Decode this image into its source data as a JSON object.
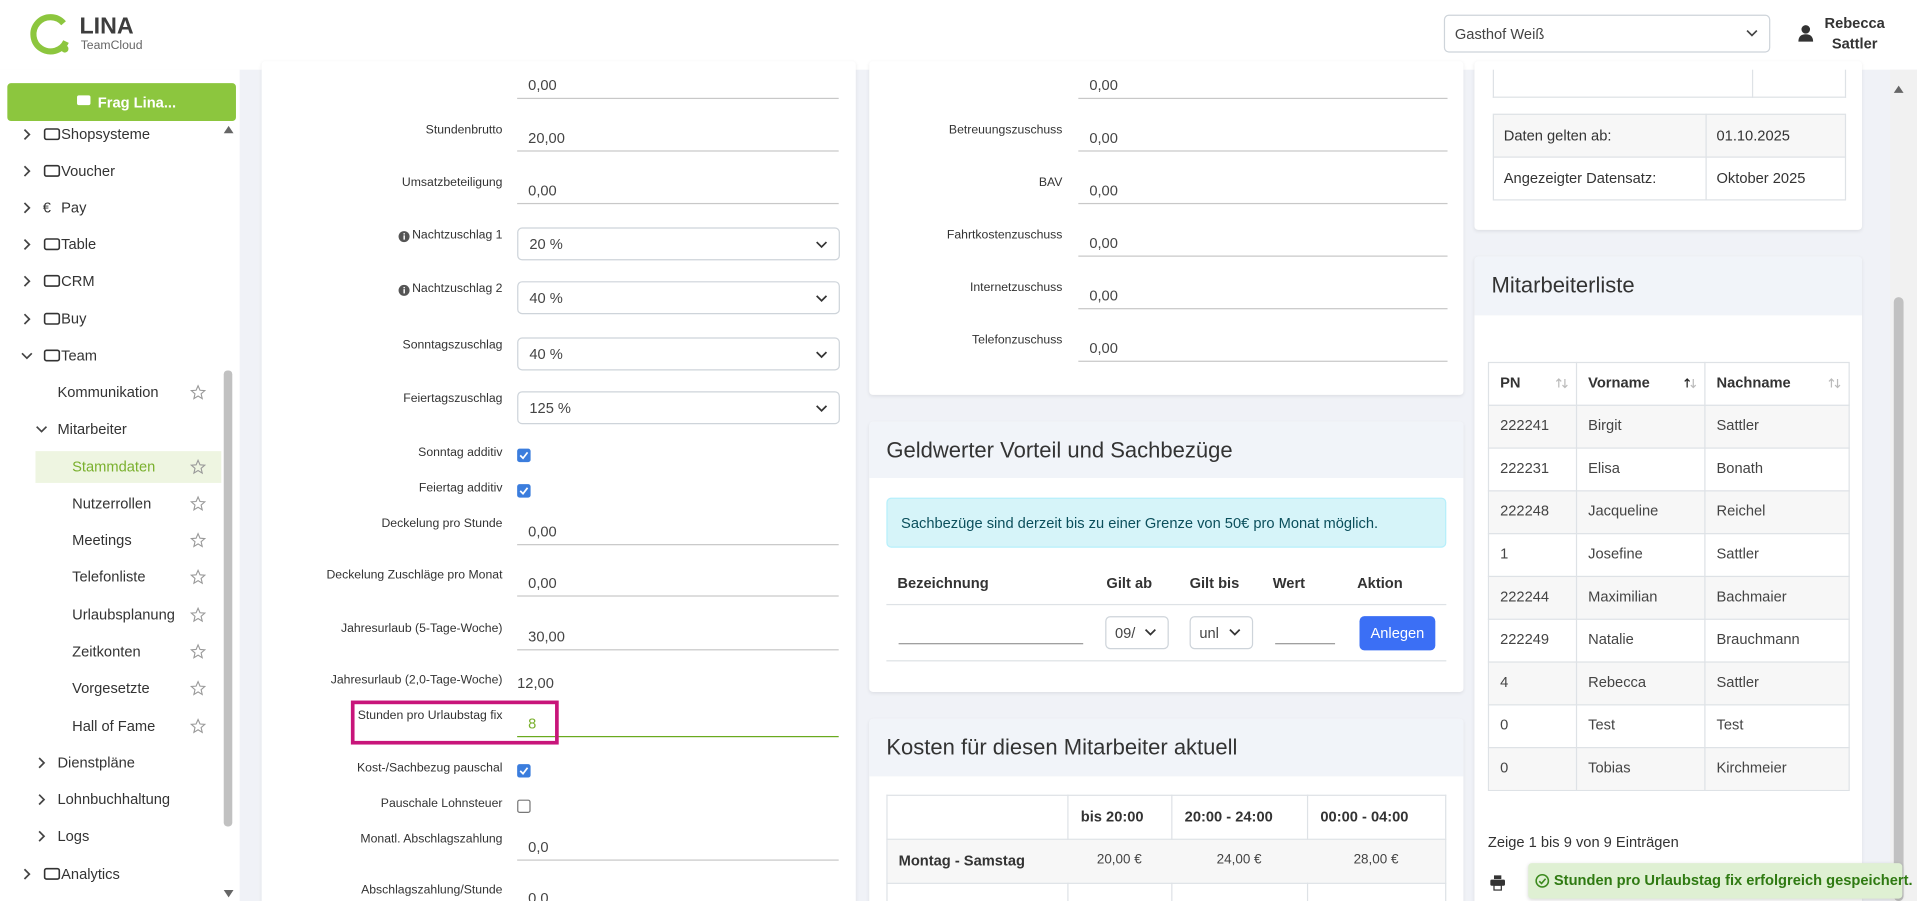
{
  "header": {
    "logo": "LINA",
    "tagline": "TeamCloud",
    "location": "Gasthof Weiß",
    "user": [
      "Rebecca",
      "Sattler"
    ]
  },
  "sidebar": {
    "ask": "Frag Lina...",
    "items": [
      {
        "label": "Shopsysteme",
        "level": 0,
        "toggle": "closed"
      },
      {
        "label": "Voucher",
        "level": 0,
        "toggle": "closed"
      },
      {
        "label": "Pay",
        "level": 0,
        "toggle": "closed",
        "icon": "€"
      },
      {
        "label": "Table",
        "level": 0,
        "toggle": "closed"
      },
      {
        "label": "CRM",
        "level": 0,
        "toggle": "closed"
      },
      {
        "label": "Buy",
        "level": 0,
        "toggle": "closed"
      },
      {
        "label": "Team",
        "level": 0,
        "toggle": "open"
      },
      {
        "label": "Kommunikation",
        "level": 1,
        "star": true
      },
      {
        "label": "Mitarbeiter",
        "level": 1,
        "toggle": "open"
      },
      {
        "label": "Stammdaten",
        "level": 2,
        "star": true,
        "active": true
      },
      {
        "label": "Nutzerrollen",
        "level": 2,
        "star": true
      },
      {
        "label": "Meetings",
        "level": 2,
        "star": true
      },
      {
        "label": "Telefonliste",
        "level": 2,
        "star": true
      },
      {
        "label": "Urlaubsplanung",
        "level": 2,
        "star": true
      },
      {
        "label": "Zeitkonten",
        "level": 2,
        "star": true
      },
      {
        "label": "Vorgesetzte",
        "level": 2,
        "star": true
      },
      {
        "label": "Hall of Fame",
        "level": 2,
        "star": true
      },
      {
        "label": "Dienstpläne",
        "level": 1,
        "toggle": "closed"
      },
      {
        "label": "Lohnbuchhaltung",
        "level": 1,
        "toggle": "closed"
      },
      {
        "label": "Logs",
        "level": 1,
        "toggle": "closed"
      },
      {
        "label": "Analytics",
        "level": 0,
        "toggle": "closed"
      }
    ]
  },
  "form_left": [
    {
      "value": "0,00",
      "kind": "input"
    },
    {
      "label": "Stundenbrutto",
      "value": "20,00",
      "kind": "input"
    },
    {
      "label": "Umsatzbeteiligung",
      "value": "0,00",
      "kind": "input"
    },
    {
      "label": "Nachtzuschlag 1",
      "value": "20 %",
      "kind": "select",
      "info": true
    },
    {
      "label": "Nachtzuschlag 2",
      "value": "40 %",
      "kind": "select",
      "info": true
    },
    {
      "label": "Sonntagszuschlag",
      "value": "40 %",
      "kind": "select"
    },
    {
      "label": "Feiertagszuschlag",
      "value": "125 %",
      "kind": "select"
    },
    {
      "label": "Sonntag additiv",
      "kind": "check",
      "checked": true
    },
    {
      "label": "Feiertag additiv",
      "kind": "check",
      "checked": true
    },
    {
      "label": "Deckelung pro Stunde",
      "value": "0,00",
      "kind": "input"
    },
    {
      "label": "Deckelung Zuschläge pro Monat",
      "value": "0,00",
      "kind": "input"
    },
    {
      "label": "Jahresurlaub (5-Tage-Woche)",
      "value": "30,00",
      "kind": "input"
    },
    {
      "label": "Jahresurlaub (2,0-Tage-Woche)",
      "value": "12,00",
      "kind": "plain"
    },
    {
      "label": "Stunden pro Urlaubstag fix",
      "value": "8",
      "kind": "input",
      "highlight": true
    },
    {
      "label": "Kost-/Sachbezug pauschal",
      "kind": "check",
      "checked": true
    },
    {
      "label": "Pauschale Lohnsteuer",
      "kind": "check",
      "checked": false
    },
    {
      "label": "Monatl. Abschlagszahlung",
      "value": "0,0",
      "kind": "input"
    },
    {
      "label": "Abschlagszahlung/Stunde",
      "value": "0,0",
      "kind": "input"
    }
  ],
  "form_middle": [
    {
      "value": "0,00"
    },
    {
      "label": "Betreuungszuschuss",
      "value": "0,00"
    },
    {
      "label": "BAV",
      "value": "0,00"
    },
    {
      "label": "Fahrtkostenzuschuss",
      "value": "0,00"
    },
    {
      "label": "Internetzuschuss",
      "value": "0,00"
    },
    {
      "label": "Telefonzuschuss",
      "value": "0,00"
    }
  ],
  "benefits": {
    "title": "Geldwerter Vorteil und Sachbezüge",
    "notice": "Sachbezüge sind derzeit bis zu einer Grenze von 50€ pro Monat möglich.",
    "columns": [
      "Bezeichnung",
      "Gilt ab",
      "Gilt bis",
      "Wert",
      "Aktion"
    ],
    "gilt_ab": "09/",
    "gilt_bis": "unl",
    "button": "Anlegen"
  },
  "costs": {
    "title": "Kosten für diesen Mitarbeiter aktuell",
    "columns": [
      "bis 20:00",
      "20:00 - 24:00",
      "00:00 - 04:00"
    ],
    "rows": [
      {
        "label": "Montag - Samstag",
        "values": [
          "20,00 €",
          "24,00 €",
          "28,00 €"
        ]
      }
    ]
  },
  "record": [
    [
      "Daten gelten ab:",
      "01.10.2025"
    ],
    [
      "Angezeigter Datensatz:",
      "Oktober 2025"
    ]
  ],
  "employees": {
    "title": "Mitarbeiterliste",
    "columns": [
      "PN",
      "Vorname",
      "Nachname"
    ],
    "sort": {
      "column": 1,
      "direction": "asc"
    },
    "rows": [
      [
        "222241",
        "Birgit",
        "Sattler"
      ],
      [
        "222231",
        "Elisa",
        "Bonath"
      ],
      [
        "222248",
        "Jacqueline",
        "Reichel"
      ],
      [
        "1",
        "Josefine",
        "Sattler"
      ],
      [
        "222244",
        "Maximilian",
        "Bachmaier"
      ],
      [
        "222249",
        "Natalie",
        "Brauchmann"
      ],
      [
        "4",
        "Rebecca",
        "Sattler"
      ],
      [
        "0",
        "Test",
        "Test"
      ],
      [
        "0",
        "Tobias",
        "Kirchmeier"
      ]
    ],
    "info": "Zeige 1 bis 9 von 9 Einträgen"
  },
  "toast": "Stunden pro Urlaubstag fix erfolgreich gespeichert."
}
